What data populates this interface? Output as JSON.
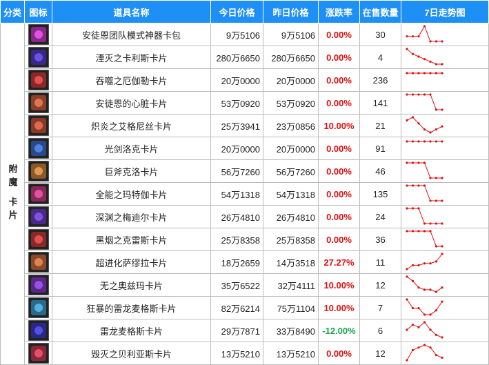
{
  "table": {
    "headers": [
      "分类",
      "图标",
      "道具名称",
      "今日价格",
      "昨日价格",
      "涨跌率",
      "在售数量",
      "7日走势图"
    ],
    "category": "附魔 卡片",
    "rows": [
      {
        "name": "安徒恩团队模式神器卡包",
        "today": "9万5106",
        "yesterday": "9万5106",
        "rate": "0.00%",
        "count": "30",
        "trend": [
          1,
          1,
          1,
          3,
          0,
          0,
          0
        ]
      },
      {
        "name": "湮灭之卡利斯卡片",
        "today": "280万6650",
        "yesterday": "280万6650",
        "rate": "0.00%",
        "count": "4",
        "trend": [
          6,
          4,
          3,
          2,
          1,
          0,
          0
        ]
      },
      {
        "name": "吞噬之厄伽勒卡片",
        "today": "20万0000",
        "yesterday": "20万0000",
        "rate": "0.00%",
        "count": "236",
        "trend": [
          1,
          1,
          1,
          1,
          1,
          1,
          1
        ]
      },
      {
        "name": "安徒恩的心脏卡片",
        "today": "53万0920",
        "yesterday": "53万0920",
        "rate": "0.00%",
        "count": "141",
        "trend": [
          1,
          1,
          1,
          1,
          1,
          0,
          0
        ]
      },
      {
        "name": "炽炎之艾格尼丝卡片",
        "today": "25万3941",
        "yesterday": "23万0856",
        "rate": "10.00%",
        "count": "21",
        "trend": [
          4,
          5,
          3,
          1,
          0,
          1,
          2
        ]
      },
      {
        "name": "光剑洛克卡片",
        "today": "20万0000",
        "yesterday": "20万0000",
        "rate": "0.00%",
        "count": "91",
        "trend": [
          1,
          1,
          1,
          1,
          1,
          1,
          1
        ]
      },
      {
        "name": "巨斧克洛卡片",
        "today": "56万7260",
        "yesterday": "56万7260",
        "rate": "0.00%",
        "count": "46",
        "trend": [
          1,
          1,
          1,
          1,
          0,
          0,
          0
        ]
      },
      {
        "name": "全能之玛特伽卡片",
        "today": "54万1318",
        "yesterday": "54万1318",
        "rate": "0.00%",
        "count": "135",
        "trend": [
          1,
          1,
          1,
          1,
          0,
          0,
          0
        ]
      },
      {
        "name": "深渊之梅迪尔卡片",
        "today": "26万4810",
        "yesterday": "26万4810",
        "rate": "0.00%",
        "count": "24",
        "trend": [
          1,
          1,
          1,
          0,
          0,
          0,
          0
        ]
      },
      {
        "name": "黑烟之克雷斯卡片",
        "today": "25万8358",
        "yesterday": "25万8358",
        "rate": "0.00%",
        "count": "36",
        "trend": [
          1,
          1,
          1,
          1,
          1,
          0,
          0
        ]
      },
      {
        "name": "超进化萨缪拉卡片",
        "today": "18万2659",
        "yesterday": "14万3518",
        "rate": "27.27%",
        "count": "11",
        "trend": [
          0,
          2,
          2,
          3,
          3,
          4,
          8
        ]
      },
      {
        "name": "无之奥兹玛卡片",
        "today": "35万6522",
        "yesterday": "32万4111",
        "rate": "10.00%",
        "count": "12",
        "trend": [
          7,
          5,
          2,
          1,
          1,
          0,
          2
        ]
      },
      {
        "name": "狂暴的雷龙麦格斯卡片",
        "today": "82万6214",
        "yesterday": "75万1104",
        "rate": "10.00%",
        "count": "7",
        "trend": [
          7,
          3,
          3,
          0,
          0,
          2,
          6
        ]
      },
      {
        "name": "雷龙麦格斯卡片",
        "today": "29万7871",
        "yesterday": "33万8490",
        "rate": "-12.00%",
        "count": "6",
        "trend": [
          3,
          5,
          4,
          6,
          3,
          1,
          0
        ]
      },
      {
        "name": "毁灭之贝利亚斯卡片",
        "today": "13万5210",
        "yesterday": "13万5210",
        "rate": "0.00%",
        "count": "12",
        "trend": [
          0,
          4,
          5,
          6,
          5,
          2,
          1
        ]
      }
    ]
  }
}
